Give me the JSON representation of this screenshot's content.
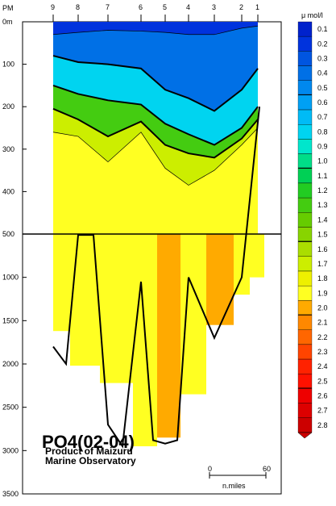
{
  "chart_data": {
    "type": "heatmap",
    "title": "PO4(02-04)",
    "subtitle_lines": [
      "Product of Maizuru",
      "Marine Observatory"
    ],
    "top_axis": {
      "label": "PM",
      "stations": [
        "9",
        "8",
        "7",
        "6",
        "5",
        "4",
        "3",
        "2",
        "1"
      ]
    },
    "y_axis_upper": {
      "unit": "m",
      "range": [
        0,
        500
      ],
      "ticks": [
        "0m",
        "100",
        "200",
        "300",
        "400",
        "500"
      ]
    },
    "y_axis_lower": {
      "range": [
        500,
        3500
      ],
      "ticks": [
        "1000",
        "1500",
        "2000",
        "2500",
        "3000",
        "3500"
      ]
    },
    "color_scale": {
      "unit": "μ mol/l",
      "levels": [
        "0.1",
        "0.2",
        "0.3",
        "0.4",
        "0.5",
        "0.6",
        "0.7",
        "0.8",
        "0.9",
        "1.0",
        "1.1",
        "1.2",
        "1.3",
        "1.4",
        "1.5",
        "1.6",
        "1.7",
        "1.8",
        "1.9",
        "2.0",
        "2.1",
        "2.2",
        "2.3",
        "2.4",
        "2.5",
        "2.6",
        "2.7",
        "2.8"
      ],
      "colors": [
        "#0022cc",
        "#0033dd",
        "#0055e0",
        "#0070e6",
        "#0088ee",
        "#00a0f4",
        "#00bbf6",
        "#00d4f0",
        "#00e6cc",
        "#00dd88",
        "#00d055",
        "#22cc22",
        "#44cc11",
        "#66cc00",
        "#88d400",
        "#aadd00",
        "#ccee00",
        "#eef000",
        "#ffff22",
        "#ffaa00",
        "#ff8800",
        "#ff6600",
        "#ff4400",
        "#ff2200",
        "#ff1100",
        "#ee0000",
        "#dd0000",
        "#cc0000"
      ]
    },
    "scale_bar": {
      "labels": [
        "0",
        "60"
      ],
      "unit": "n.miles"
    },
    "sections": {
      "upper_contours_m": [
        {
          "level": 0.1,
          "depths": [
            0,
            0,
            0,
            0,
            0,
            0,
            0,
            0,
            0
          ]
        },
        {
          "level": 0.3,
          "depths": [
            30,
            25,
            20,
            22,
            25,
            30,
            30,
            15,
            10
          ]
        },
        {
          "level": 0.5,
          "depths": [
            80,
            95,
            100,
            110,
            160,
            180,
            210,
            160,
            110
          ]
        },
        {
          "level": 1.0,
          "depths": [
            150,
            170,
            185,
            195,
            240,
            265,
            290,
            250,
            200
          ]
        },
        {
          "level": 1.5,
          "depths": [
            205,
            230,
            270,
            235,
            290,
            310,
            320,
            275,
            230
          ]
        },
        {
          "level": 1.8,
          "depths": [
            260,
            270,
            330,
            260,
            345,
            385,
            350,
            290,
            250
          ]
        }
      ],
      "lower_max_values": [
        1.9,
        1.9,
        1.9,
        1.9,
        2.0,
        1.9,
        2.0,
        1.9,
        1.9
      ]
    }
  }
}
